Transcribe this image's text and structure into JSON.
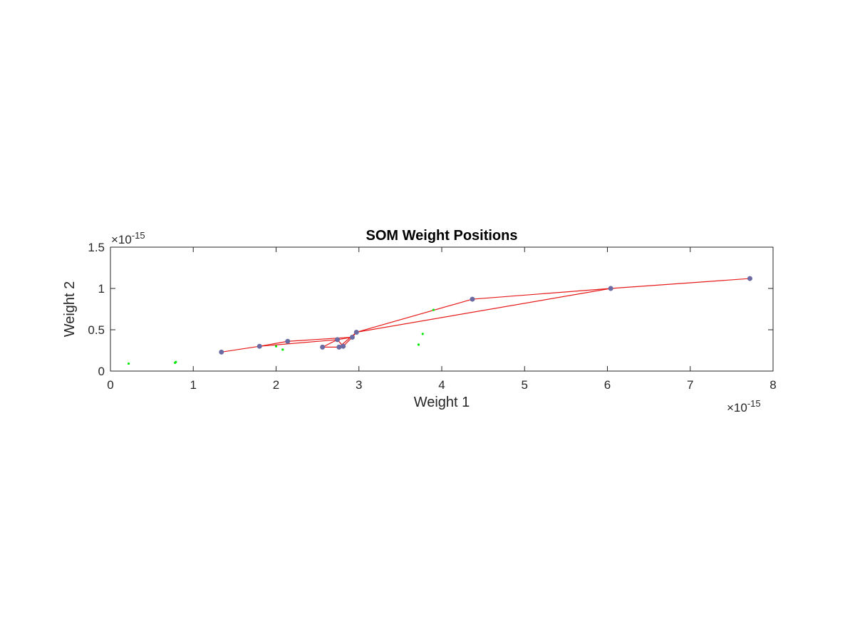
{
  "chart_data": {
    "type": "scatter",
    "title": "SOM Weight Positions",
    "xlabel": "Weight 1",
    "ylabel": "Weight 2",
    "xlim": [
      0,
      8
    ],
    "ylim": [
      0,
      1.5
    ],
    "x_ticks": [
      "0",
      "1",
      "2",
      "3",
      "4",
      "5",
      "6",
      "7",
      "8"
    ],
    "y_ticks": [
      "0",
      "0.5",
      "1",
      "1.5"
    ],
    "x_multiplier": {
      "base": "×10",
      "exp": "-15"
    },
    "y_multiplier": {
      "base": "×10",
      "exp": "-15"
    },
    "grid": false,
    "series": [
      {
        "role": "input-points",
        "color": "#00e600",
        "marker": "dot",
        "points": [
          [
            0.22,
            0.09
          ],
          [
            0.78,
            0.1
          ],
          [
            0.79,
            0.11
          ],
          [
            2.0,
            0.3
          ],
          [
            2.08,
            0.26
          ],
          [
            3.72,
            0.32
          ],
          [
            3.77,
            0.45
          ],
          [
            3.9,
            0.74
          ]
        ]
      },
      {
        "role": "neurons",
        "color": "#6b6ba3",
        "marker": "circle",
        "points": [
          [
            1.34,
            0.23
          ],
          [
            1.8,
            0.3
          ],
          [
            2.14,
            0.36
          ],
          [
            2.56,
            0.29
          ],
          [
            2.74,
            0.38
          ],
          [
            2.76,
            0.29
          ],
          [
            2.81,
            0.3
          ],
          [
            2.92,
            0.41
          ],
          [
            2.97,
            0.47
          ],
          [
            4.37,
            0.87
          ],
          [
            6.04,
            1.0
          ],
          [
            7.72,
            1.12
          ]
        ]
      },
      {
        "role": "neighbor-links",
        "color": "#e61a1a",
        "segments": [
          [
            [
              1.34,
              0.23
            ],
            [
              1.8,
              0.3
            ]
          ],
          [
            [
              1.8,
              0.3
            ],
            [
              2.74,
              0.38
            ]
          ],
          [
            [
              1.8,
              0.3
            ],
            [
              2.14,
              0.36
            ]
          ],
          [
            [
              2.14,
              0.36
            ],
            [
              2.92,
              0.41
            ]
          ],
          [
            [
              2.74,
              0.38
            ],
            [
              2.92,
              0.41
            ]
          ],
          [
            [
              2.74,
              0.38
            ],
            [
              2.81,
              0.3
            ]
          ],
          [
            [
              2.56,
              0.29
            ],
            [
              2.76,
              0.29
            ]
          ],
          [
            [
              2.56,
              0.29
            ],
            [
              2.74,
              0.38
            ]
          ],
          [
            [
              2.76,
              0.29
            ],
            [
              2.81,
              0.3
            ]
          ],
          [
            [
              2.81,
              0.3
            ],
            [
              2.92,
              0.41
            ]
          ],
          [
            [
              2.76,
              0.29
            ],
            [
              2.97,
              0.47
            ]
          ],
          [
            [
              2.92,
              0.41
            ],
            [
              2.97,
              0.47
            ]
          ],
          [
            [
              2.97,
              0.47
            ],
            [
              4.37,
              0.87
            ]
          ],
          [
            [
              2.97,
              0.47
            ],
            [
              6.04,
              1.0
            ]
          ],
          [
            [
              4.37,
              0.87
            ],
            [
              6.04,
              1.0
            ]
          ],
          [
            [
              6.04,
              1.0
            ],
            [
              7.72,
              1.12
            ]
          ]
        ]
      }
    ]
  }
}
